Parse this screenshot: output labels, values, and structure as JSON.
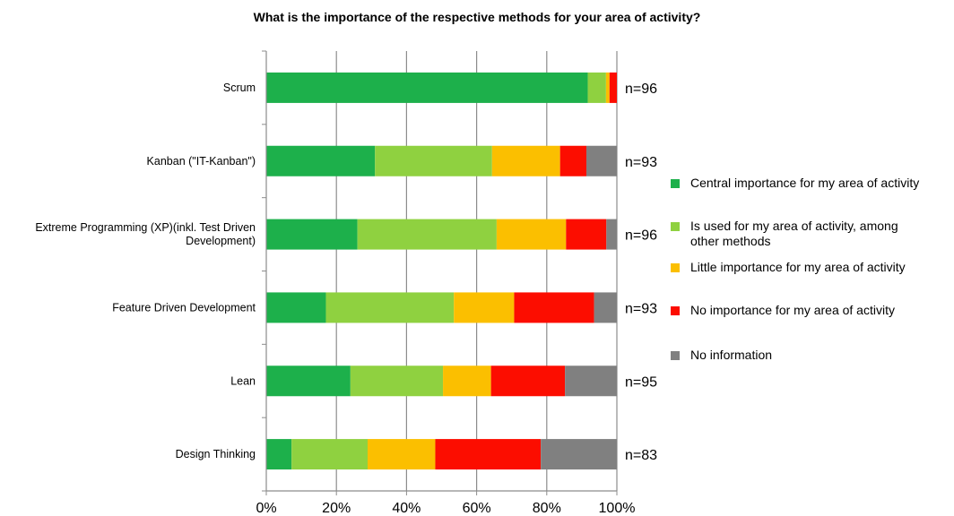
{
  "chart_data": {
    "type": "bar",
    "orientation": "horizontal",
    "stacked": "percent",
    "title": "What is the importance of the respective methods for your area of activity?",
    "categories": [
      [
        "Scrum"
      ],
      [
        "Kanban (\"IT-Kanban\")"
      ],
      [
        "Extreme Programming (XP)(inkl. Test Driven",
        "Development)"
      ],
      [
        "Feature Driven Development"
      ],
      [
        "Lean"
      ],
      [
        "Design Thinking"
      ]
    ],
    "n_labels": [
      "n=96",
      "n=93",
      "n=96",
      "n=93",
      "n=95",
      "n=83"
    ],
    "series": [
      {
        "name": [
          "Central importance for my area of activity"
        ],
        "color": "#1db04b",
        "values": [
          91.7,
          31.0,
          26.0,
          17.0,
          24.0,
          7.2
        ]
      },
      {
        "name": [
          "Is used for my area of activity, among",
          "other methods"
        ],
        "color": "#8fd140",
        "values": [
          5.2,
          33.4,
          39.7,
          36.5,
          26.4,
          21.7
        ]
      },
      {
        "name": [
          "Little importance for my area of activity"
        ],
        "color": "#fbbf00",
        "values": [
          1.0,
          19.4,
          19.8,
          17.2,
          13.7,
          19.3
        ]
      },
      {
        "name": [
          "No importance for my area of activity"
        ],
        "color": "#fc0d00",
        "values": [
          2.1,
          7.5,
          11.5,
          22.8,
          21.1,
          30.1
        ]
      },
      {
        "name": [
          "No information"
        ],
        "color": "#808080",
        "values": [
          0.0,
          8.7,
          3.0,
          6.5,
          14.8,
          21.7
        ]
      }
    ],
    "xlim": [
      0,
      100
    ],
    "xticks": [
      "0%",
      "20%",
      "40%",
      "60%",
      "80%",
      "100%"
    ],
    "grid": "vertical",
    "legend_position": "right"
  }
}
